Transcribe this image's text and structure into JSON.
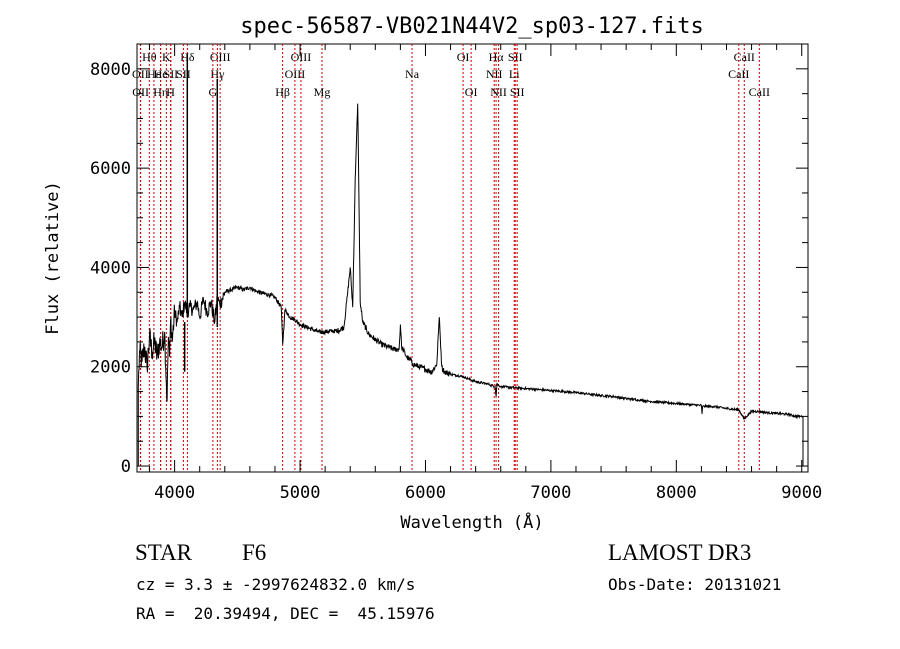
{
  "chart_data": {
    "type": "line",
    "title": "spec-56587-VB021N44V2_sp03-127.fits",
    "xlabel": "Wavelength (Å)",
    "ylabel": "Flux (relative)",
    "xlim": [
      3700,
      9050
    ],
    "ylim": [
      -120,
      8500
    ],
    "x_ticks": [
      4000,
      5000,
      6000,
      7000,
      8000,
      9000
    ],
    "x_tick_labels": [
      "4000",
      "5000",
      "6000",
      "7000",
      "8000",
      "9000"
    ],
    "y_ticks": [
      0,
      2000,
      4000,
      6000,
      8000
    ],
    "y_tick_labels": [
      "0",
      "2000",
      "4000",
      "6000",
      "8000"
    ],
    "x_minor_step": 200,
    "y_minor_step": 500,
    "grid": false,
    "line_color": "#000000",
    "marker_color": "#cc0000",
    "series": [
      {
        "name": "flux",
        "x": [
          3710,
          3720,
          3740,
          3760,
          3780,
          3800,
          3820,
          3840,
          3860,
          3880,
          3900,
          3920,
          3940,
          3950,
          3960,
          3970,
          3980,
          4000,
          4020,
          4040,
          4060,
          4080,
          4100,
          4120,
          4150,
          4180,
          4200,
          4230,
          4260,
          4290,
          4320,
          4340,
          4360,
          4400,
          4450,
          4500,
          4550,
          4600,
          4650,
          4700,
          4750,
          4800,
          4850,
          4862,
          4880,
          4920,
          4960,
          5000,
          5050,
          5100,
          5150,
          5200,
          5250,
          5300,
          5350,
          5380,
          5400,
          5420,
          5440,
          5460,
          5480,
          5500,
          5550,
          5600,
          5650,
          5700,
          5750,
          5790,
          5800,
          5810,
          5850,
          5890,
          5900,
          5950,
          6000,
          6050,
          6090,
          6110,
          6130,
          6150,
          6200,
          6300,
          6400,
          6500,
          6555,
          6563,
          6570,
          6600,
          6700,
          6800,
          6900,
          7000,
          7100,
          7200,
          7300,
          7400,
          7500,
          7600,
          7700,
          7800,
          7900,
          8000,
          8100,
          8200,
          8205,
          8210,
          8300,
          8400,
          8500,
          8540,
          8600,
          8662,
          8700,
          8800,
          8900,
          8950,
          8990,
          9000,
          9010
        ],
        "values": [
          1600,
          2300,
          2100,
          2400,
          2000,
          2600,
          2300,
          2500,
          2200,
          2500,
          2400,
          2700,
          1300,
          2600,
          2200,
          3000,
          2500,
          3100,
          2900,
          3200,
          3000,
          3300,
          3100,
          3200,
          3150,
          3300,
          3000,
          3350,
          3100,
          3300,
          2900,
          3400,
          3250,
          3500,
          3550,
          3600,
          3550,
          3600,
          3520,
          3480,
          3450,
          3400,
          3200,
          2450,
          3150,
          3000,
          2950,
          2850,
          2800,
          2750,
          2700,
          2700,
          2720,
          2720,
          2800,
          3500,
          4000,
          3200,
          5800,
          7300,
          3300,
          2900,
          2650,
          2550,
          2450,
          2400,
          2350,
          2350,
          2850,
          2400,
          2200,
          2100,
          2050,
          2000,
          1950,
          1900,
          2050,
          3000,
          2000,
          1900,
          1850,
          1800,
          1700,
          1650,
          1600,
          1400,
          1650,
          1600,
          1580,
          1560,
          1540,
          1520,
          1500,
          1480,
          1450,
          1420,
          1400,
          1360,
          1330,
          1300,
          1280,
          1260,
          1240,
          1220,
          1050,
          1200,
          1200,
          1160,
          1130,
          950,
          1100,
          1100,
          1080,
          1060,
          1040,
          1000,
          1000,
          1000,
          1000
        ]
      }
    ],
    "line_markers": [
      {
        "label": "Hθ",
        "x": 3798,
        "row": 1
      },
      {
        "label": "OII",
        "x": 3727,
        "row": 2
      },
      {
        "label": "OII",
        "x": 3729,
        "row": 3
      },
      {
        "label": "Hε",
        "x": 3835,
        "row": 2
      },
      {
        "label": "Hη",
        "x": 3889,
        "row": 3
      },
      {
        "label": "K",
        "x": 3934,
        "row": 1
      },
      {
        "label": "He",
        "x": 3888,
        "row": 2
      },
      {
        "label": "SII",
        "x": 3970,
        "row": 2
      },
      {
        "label": "H",
        "x": 3968,
        "row": 3
      },
      {
        "label": "Hδ",
        "x": 4102,
        "row": 1
      },
      {
        "label": "SII",
        "x": 4070,
        "row": 2
      },
      {
        "label": "OIII",
        "x": 4363,
        "row": 1
      },
      {
        "label": "Hγ",
        "x": 4341,
        "row": 2
      },
      {
        "label": "G",
        "x": 4305,
        "row": 3
      },
      {
        "label": "OIII",
        "x": 5007,
        "row": 1
      },
      {
        "label": "OIII",
        "x": 4959,
        "row": 2
      },
      {
        "label": "Hβ",
        "x": 4861,
        "row": 3
      },
      {
        "label": "Mg",
        "x": 5175,
        "row": 3
      },
      {
        "label": "Na",
        "x": 5893,
        "row": 2
      },
      {
        "label": "OI",
        "x": 6300,
        "row": 1
      },
      {
        "label": "OI",
        "x": 6364,
        "row": 3
      },
      {
        "label": "Hα",
        "x": 6563,
        "row": 1
      },
      {
        "label": "NII",
        "x": 6548,
        "row": 2
      },
      {
        "label": "NII",
        "x": 6583,
        "row": 3
      },
      {
        "label": "SII",
        "x": 6716,
        "row": 1
      },
      {
        "label": "Li",
        "x": 6708,
        "row": 2
      },
      {
        "label": "SII",
        "x": 6731,
        "row": 3
      },
      {
        "label": "CaII",
        "x": 8542,
        "row": 1
      },
      {
        "label": "CaII",
        "x": 8498,
        "row": 2
      },
      {
        "label": "CaII",
        "x": 8662,
        "row": 3
      }
    ]
  },
  "info": {
    "class": "STAR",
    "subclass": "F6",
    "survey": "LAMOST DR3",
    "cz_line": "cz = 3.3 ± -2997624832.0 km/s",
    "obs_date_line": "Obs-Date: 20131021",
    "radec_line": "RA =  20.39494, DEC =  45.15976"
  }
}
